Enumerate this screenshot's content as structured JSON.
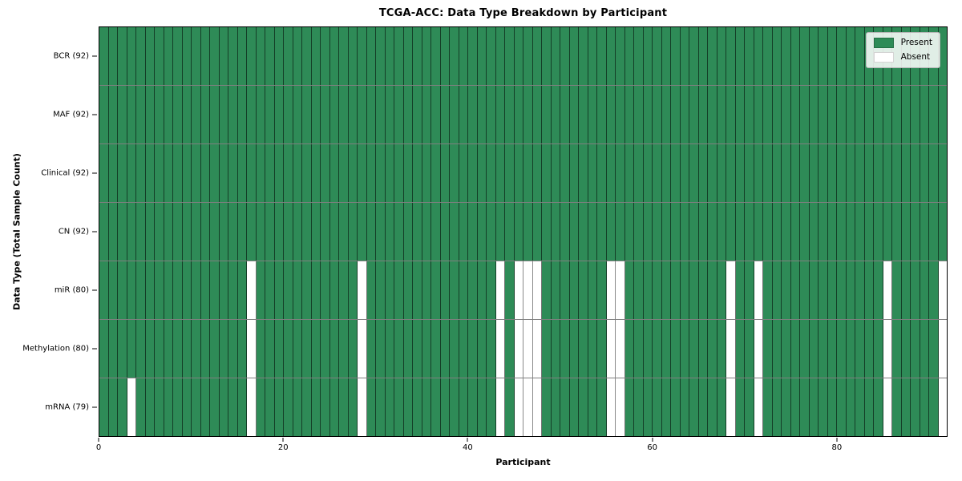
{
  "chart_data": {
    "type": "heatmap",
    "title": "TCGA-ACC: Data Type Breakdown by Participant",
    "xlabel": "Participant",
    "ylabel": "Data Type (Total Sample Count)",
    "n_participants": 92,
    "x_range": [
      0,
      92
    ],
    "x_ticks": [
      0,
      20,
      40,
      60,
      80
    ],
    "grid": true,
    "legend_position": "upper right",
    "colors": {
      "present": "#2e8b57",
      "absent": "#ffffff"
    },
    "rows": [
      {
        "name": "BCR",
        "label": "BCR (92)",
        "total_samples": 92,
        "absent_participants": []
      },
      {
        "name": "MAF",
        "label": "MAF (92)",
        "total_samples": 92,
        "absent_participants": []
      },
      {
        "name": "Clinical",
        "label": "Clinical (92)",
        "total_samples": 92,
        "absent_participants": []
      },
      {
        "name": "CN",
        "label": "CN (92)",
        "total_samples": 92,
        "absent_participants": []
      },
      {
        "name": "miR",
        "label": "miR (80)",
        "total_samples": 80,
        "absent_participants": [
          16,
          28,
          43,
          45,
          46,
          47,
          55,
          56,
          68,
          71,
          85,
          91
        ]
      },
      {
        "name": "Methylation",
        "label": "Methylation (80)",
        "total_samples": 80,
        "absent_participants": [
          16,
          28,
          43,
          45,
          46,
          47,
          55,
          56,
          68,
          71,
          85,
          91
        ]
      },
      {
        "name": "mRNA",
        "label": "mRNA (79)",
        "total_samples": 79,
        "absent_participants": [
          3,
          16,
          28,
          43,
          45,
          46,
          47,
          55,
          56,
          68,
          71,
          85,
          91
        ]
      }
    ],
    "legend_entries": [
      {
        "label": "Present",
        "color": "#2e8b57"
      },
      {
        "label": "Absent",
        "color": "#ffffff"
      }
    ]
  }
}
